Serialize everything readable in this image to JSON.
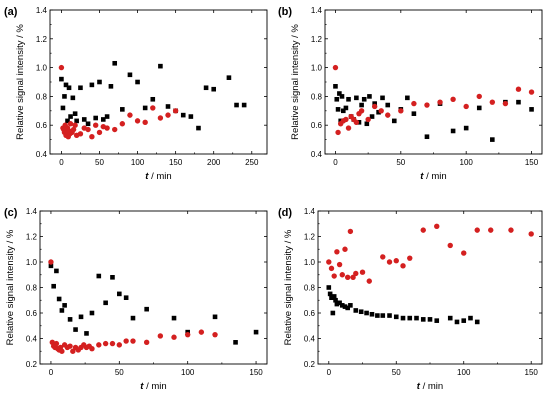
{
  "colors": {
    "black_series": "#000000",
    "red_series": "#d42020",
    "axis": "#000000"
  },
  "chart_data": [
    {
      "panel": "(a)",
      "type": "scatter",
      "xlabel_var": "t",
      "xlabel_unit": " / min",
      "ylabel": "Relative signal intensity / %",
      "xlim": [
        -15,
        270
      ],
      "ylim": [
        0.4,
        1.4
      ],
      "xticks": [
        0,
        50,
        100,
        150,
        200,
        250
      ],
      "yticks": [
        0.4,
        0.6,
        0.8,
        1.0,
        1.2,
        1.4
      ],
      "series": [
        {
          "color": "black",
          "marker": "square",
          "x": [
            0,
            2,
            4,
            6,
            8,
            10,
            12,
            15,
            18,
            20,
            25,
            30,
            35,
            40,
            45,
            50,
            55,
            60,
            65,
            70,
            80,
            90,
            100,
            110,
            120,
            130,
            140,
            150,
            160,
            170,
            180,
            190,
            200,
            220,
            230,
            240
          ],
          "y": [
            0.92,
            0.72,
            0.8,
            0.88,
            0.63,
            0.86,
            0.66,
            0.79,
            0.68,
            0.63,
            0.86,
            0.64,
            0.61,
            0.88,
            0.65,
            0.9,
            0.64,
            0.66,
            0.87,
            1.03,
            0.71,
            0.95,
            0.9,
            0.72,
            0.78,
            1.01,
            0.73,
            0.7,
            0.67,
            0.66,
            0.58,
            0.86,
            0.85,
            0.93,
            0.74,
            0.74
          ]
        },
        {
          "color": "red",
          "marker": "circle",
          "x": [
            0,
            2,
            3,
            4,
            5,
            6,
            7,
            8,
            9,
            10,
            11,
            12,
            14,
            16,
            18,
            20,
            25,
            30,
            35,
            40,
            45,
            50,
            55,
            60,
            70,
            80,
            90,
            100,
            110,
            120,
            130,
            140,
            150
          ],
          "y": [
            1.0,
            0.58,
            0.57,
            0.55,
            0.6,
            0.53,
            0.56,
            0.58,
            0.52,
            0.56,
            0.54,
            0.61,
            0.55,
            0.57,
            0.6,
            0.53,
            0.54,
            0.58,
            0.57,
            0.52,
            0.6,
            0.55,
            0.59,
            0.58,
            0.57,
            0.61,
            0.67,
            0.63,
            0.62,
            0.72,
            0.65,
            0.67,
            0.7
          ]
        }
      ]
    },
    {
      "panel": "(b)",
      "type": "scatter",
      "xlabel_var": "t",
      "xlabel_unit": " / min",
      "ylabel": "Relative signal intensity / %",
      "xlim": [
        -8,
        158
      ],
      "ylim": [
        0.4,
        1.4
      ],
      "xticks": [
        0,
        50,
        100,
        150
      ],
      "yticks": [
        0.4,
        0.6,
        0.8,
        1.0,
        1.2,
        1.4
      ],
      "series": [
        {
          "color": "black",
          "marker": "square",
          "x": [
            0,
            1,
            2,
            3,
            4,
            5,
            6,
            8,
            10,
            12,
            14,
            16,
            18,
            20,
            22,
            24,
            26,
            28,
            30,
            33,
            36,
            40,
            45,
            50,
            55,
            60,
            70,
            80,
            90,
            100,
            110,
            120,
            130,
            140,
            150
          ],
          "y": [
            0.87,
            0.78,
            0.71,
            0.82,
            0.63,
            0.8,
            0.7,
            0.72,
            0.78,
            0.66,
            0.64,
            0.79,
            0.62,
            0.74,
            0.78,
            0.61,
            0.8,
            0.66,
            0.75,
            0.69,
            0.79,
            0.74,
            0.63,
            0.71,
            0.79,
            0.68,
            0.52,
            0.75,
            0.56,
            0.58,
            0.72,
            0.5,
            0.76,
            0.76,
            0.71
          ]
        },
        {
          "color": "red",
          "marker": "circle",
          "x": [
            0,
            2,
            4,
            6,
            8,
            10,
            12,
            14,
            16,
            18,
            20,
            25,
            30,
            35,
            40,
            50,
            60,
            70,
            80,
            90,
            100,
            110,
            120,
            130,
            140,
            150
          ],
          "y": [
            1.0,
            0.55,
            0.61,
            0.63,
            0.64,
            0.58,
            0.66,
            0.64,
            0.62,
            0.68,
            0.7,
            0.64,
            0.73,
            0.7,
            0.67,
            0.7,
            0.75,
            0.74,
            0.76,
            0.78,
            0.73,
            0.8,
            0.76,
            0.75,
            0.85,
            0.83
          ]
        }
      ]
    },
    {
      "panel": "(c)",
      "type": "scatter",
      "xlabel_var": "t",
      "xlabel_unit": " / min",
      "ylabel": "Relative signal intensity / %",
      "xlim": [
        -8,
        158
      ],
      "ylim": [
        0.2,
        1.4
      ],
      "xticks": [
        0,
        50,
        100,
        150
      ],
      "yticks": [
        0.2,
        0.4,
        0.6,
        0.8,
        1.0,
        1.2,
        1.4
      ],
      "series": [
        {
          "color": "black",
          "marker": "square",
          "x": [
            0,
            2,
            4,
            6,
            8,
            10,
            14,
            18,
            22,
            26,
            30,
            35,
            40,
            45,
            50,
            55,
            60,
            70,
            90,
            100,
            120,
            135,
            150
          ],
          "y": [
            0.97,
            0.81,
            0.93,
            0.71,
            0.62,
            0.66,
            0.55,
            0.47,
            0.57,
            0.44,
            0.6,
            0.89,
            0.68,
            0.88,
            0.75,
            0.72,
            0.56,
            0.63,
            0.56,
            0.45,
            0.57,
            0.37,
            0.45
          ]
        },
        {
          "color": "red",
          "marker": "circle",
          "x": [
            0,
            1,
            2,
            3,
            4,
            5,
            6,
            7,
            8,
            10,
            12,
            14,
            16,
            18,
            20,
            22,
            24,
            26,
            28,
            30,
            35,
            40,
            45,
            50,
            55,
            60,
            70,
            80,
            90,
            100,
            110,
            120
          ],
          "y": [
            1.0,
            0.37,
            0.34,
            0.33,
            0.36,
            0.32,
            0.31,
            0.33,
            0.3,
            0.35,
            0.33,
            0.34,
            0.3,
            0.33,
            0.31,
            0.33,
            0.35,
            0.33,
            0.34,
            0.32,
            0.35,
            0.36,
            0.36,
            0.35,
            0.38,
            0.38,
            0.37,
            0.42,
            0.41,
            0.43,
            0.45,
            0.43
          ]
        }
      ]
    },
    {
      "panel": "(d)",
      "type": "scatter",
      "xlabel_var": "t",
      "xlabel_unit": " / min",
      "ylabel": "Relative signal intensity / %",
      "xlim": [
        -8,
        158
      ],
      "ylim": [
        0.2,
        1.4
      ],
      "xticks": [
        0,
        50,
        100,
        150
      ],
      "yticks": [
        0.2,
        0.4,
        0.6,
        0.8,
        1.0,
        1.2,
        1.4
      ],
      "series": [
        {
          "color": "black",
          "marker": "square",
          "x": [
            0,
            1,
            2,
            3,
            4,
            5,
            6,
            8,
            10,
            12,
            14,
            16,
            20,
            24,
            28,
            32,
            36,
            40,
            45,
            50,
            55,
            60,
            65,
            70,
            75,
            80,
            90,
            95,
            100,
            105,
            110
          ],
          "y": [
            0.8,
            0.75,
            0.72,
            0.6,
            0.73,
            0.7,
            0.67,
            0.68,
            0.66,
            0.65,
            0.64,
            0.66,
            0.62,
            0.61,
            0.6,
            0.59,
            0.58,
            0.58,
            0.58,
            0.57,
            0.56,
            0.56,
            0.56,
            0.55,
            0.55,
            0.54,
            0.56,
            0.53,
            0.54,
            0.56,
            0.53
          ]
        },
        {
          "color": "red",
          "marker": "circle",
          "x": [
            0,
            2,
            4,
            6,
            8,
            10,
            12,
            14,
            16,
            18,
            20,
            25,
            30,
            40,
            45,
            50,
            55,
            60,
            70,
            80,
            90,
            100,
            110,
            120,
            135,
            150
          ],
          "y": [
            1.0,
            0.95,
            0.89,
            1.08,
            0.98,
            0.9,
            1.1,
            0.88,
            1.24,
            0.88,
            0.91,
            0.92,
            0.85,
            1.04,
            1.0,
            1.01,
            0.97,
            1.03,
            1.25,
            1.28,
            1.13,
            1.07,
            1.25,
            1.25,
            1.25,
            1.22
          ]
        }
      ]
    }
  ]
}
